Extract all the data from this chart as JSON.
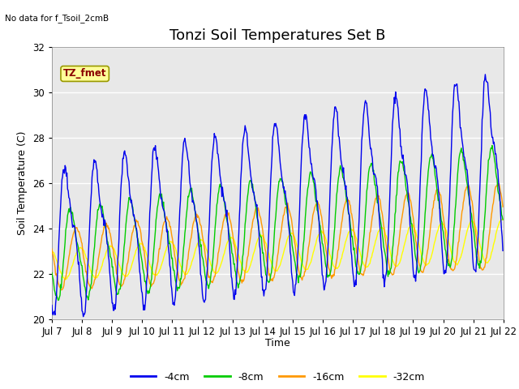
{
  "title": "Tonzi Soil Temperatures Set B",
  "no_data_label": "No data for f_Tsoil_2cmB",
  "box_label": "TZ_fmet",
  "xlabel": "Time",
  "ylabel": "Soil Temperature (C)",
  "ylim": [
    20,
    32
  ],
  "yticks": [
    20,
    22,
    24,
    26,
    28,
    30,
    32
  ],
  "x_start_day": 7,
  "x_end_day": 22,
  "x_tick_days": [
    7,
    8,
    9,
    10,
    11,
    12,
    13,
    14,
    15,
    16,
    17,
    18,
    19,
    20,
    21,
    22
  ],
  "colors": {
    "4cm": "#0000ee",
    "8cm": "#00cc00",
    "16cm": "#ff9900",
    "32cm": "#ffff00"
  },
  "legend_labels": [
    "-4cm",
    "-8cm",
    "-16cm",
    "-32cm"
  ],
  "background_color": "#e8e8e8",
  "fig_background": "#ffffff",
  "title_fontsize": 13,
  "label_fontsize": 9,
  "tick_fontsize": 8.5,
  "pts_per_day": 48
}
